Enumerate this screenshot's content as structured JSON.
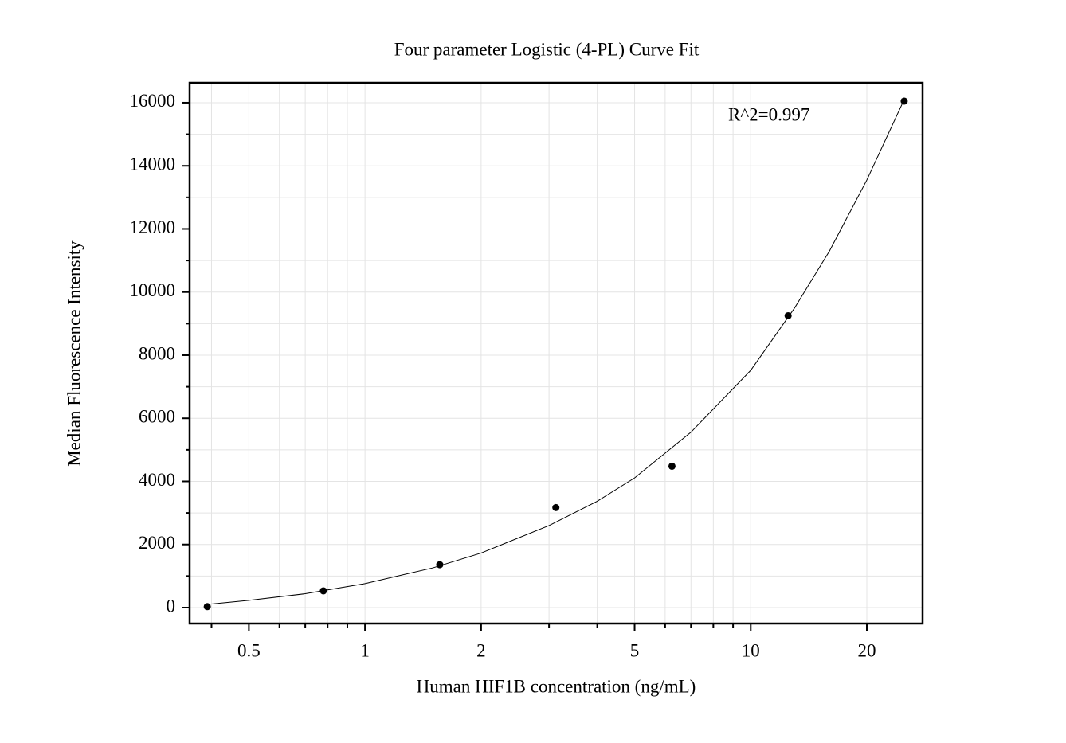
{
  "chart_data": {
    "type": "scatter",
    "title": "Four parameter Logistic (4-PL) Curve Fit",
    "xlabel": "Human HIF1B concentration (ng/mL)",
    "ylabel": "Median Fluorescence Intensity",
    "annotation": "R^2=0.997",
    "xscale": "log",
    "xlim": [
      0.351,
      27.9
    ],
    "ylim": [
      -505,
      16630
    ],
    "xticks": [
      0.5,
      1,
      2,
      5,
      10,
      20
    ],
    "xminorticks": [
      0.4,
      0.6,
      0.7,
      0.8,
      0.9,
      3,
      4,
      6,
      7,
      8,
      9
    ],
    "yticks": [
      0,
      2000,
      4000,
      6000,
      8000,
      10000,
      12000,
      14000,
      16000
    ],
    "yminorticks": [
      1000,
      3000,
      5000,
      7000,
      9000,
      11000,
      13000,
      15000
    ],
    "grid": true,
    "series": [
      {
        "color": "#000000",
        "style": "points",
        "x": [
          0.39,
          0.78,
          1.5625,
          3.125,
          6.25,
          12.5,
          25
        ],
        "values": [
          30,
          530,
          1360,
          3170,
          4480,
          9250,
          16050
        ]
      },
      {
        "color": "#000000",
        "style": "line",
        "x": [
          0.39,
          0.5,
          0.7,
          1,
          1.5,
          2,
          3,
          4,
          5,
          7,
          10,
          13,
          16,
          20,
          25
        ],
        "values": [
          100,
          230,
          440,
          760,
          1260,
          1730,
          2600,
          3370,
          4110,
          5560,
          7520,
          9500,
          11300,
          13550,
          16100
        ]
      }
    ]
  }
}
